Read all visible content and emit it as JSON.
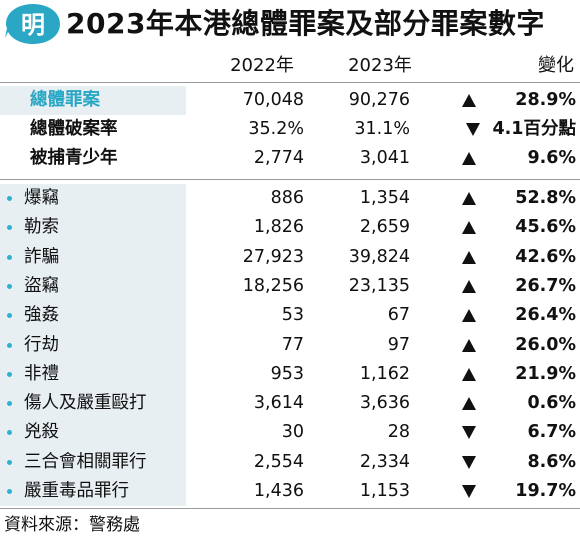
{
  "logo": {
    "glyph": "明",
    "color": "#2aa7c4"
  },
  "title": "2023年本港總體罪案及部分罪案數字",
  "colors": {
    "accent": "#2aa7c4",
    "band": "#e8eff2",
    "bullet": "#2fb2cf"
  },
  "chart_data": {
    "type": "table",
    "columns": [
      "2022年",
      "2023年",
      "變化"
    ],
    "summary_rows": [
      {
        "label": "總體罪案",
        "v2022": "70,048",
        "v2023": "90,276",
        "direction": "up",
        "change": "28.9%",
        "accent": true
      },
      {
        "label": "總體破案率",
        "v2022": "35.2%",
        "v2023": "31.1%",
        "direction": "down",
        "change": "4.1百分點",
        "accent": false
      },
      {
        "label": "被捕青少年",
        "v2022": "2,774",
        "v2023": "3,041",
        "direction": "up",
        "change": "9.6%",
        "accent": false
      }
    ],
    "detail_rows": [
      {
        "label": "爆竊",
        "v2022": "886",
        "v2023": "1,354",
        "direction": "up",
        "change": "52.8%"
      },
      {
        "label": "勒索",
        "v2022": "1,826",
        "v2023": "2,659",
        "direction": "up",
        "change": "45.6%"
      },
      {
        "label": "詐騙",
        "v2022": "27,923",
        "v2023": "39,824",
        "direction": "up",
        "change": "42.6%"
      },
      {
        "label": "盜竊",
        "v2022": "18,256",
        "v2023": "23,135",
        "direction": "up",
        "change": "26.7%"
      },
      {
        "label": "強姦",
        "v2022": "53",
        "v2023": "67",
        "direction": "up",
        "change": "26.4%"
      },
      {
        "label": "行劫",
        "v2022": "77",
        "v2023": "97",
        "direction": "up",
        "change": "26.0%"
      },
      {
        "label": "非禮",
        "v2022": "953",
        "v2023": "1,162",
        "direction": "up",
        "change": "21.9%"
      },
      {
        "label": "傷人及嚴重毆打",
        "v2022": "3,614",
        "v2023": "3,636",
        "direction": "up",
        "change": "0.6%"
      },
      {
        "label": "兇殺",
        "v2022": "30",
        "v2023": "28",
        "direction": "down",
        "change": "6.7%"
      },
      {
        "label": "三合會相關罪行",
        "v2022": "2,554",
        "v2023": "2,334",
        "direction": "down",
        "change": "8.6%"
      },
      {
        "label": "嚴重毒品罪行",
        "v2022": "1,436",
        "v2023": "1,153",
        "direction": "down",
        "change": "19.7%"
      }
    ]
  },
  "source": "資料來源：警務處"
}
